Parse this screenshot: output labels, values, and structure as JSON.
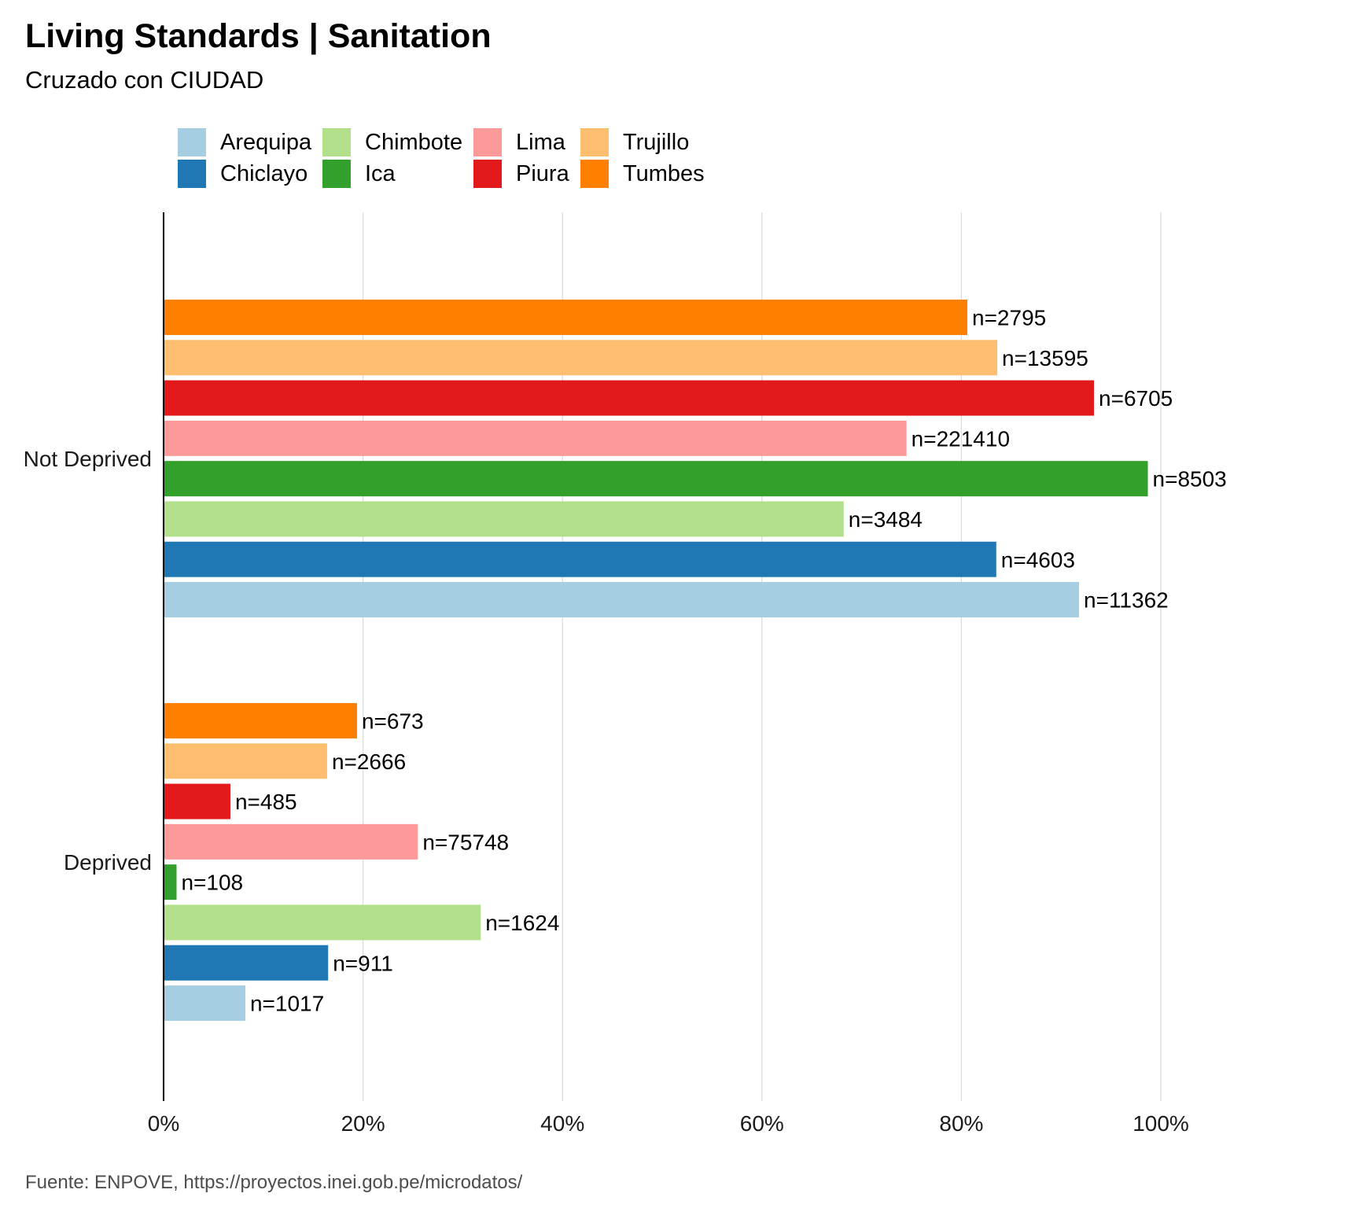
{
  "chart_data": {
    "type": "bar",
    "orientation": "horizontal",
    "title": "Living Standards | Sanitation",
    "subtitle": "Cruzado con CIUDAD",
    "caption": "Fuente:  ENPOVE, https://proyectos.inei.gob.pe/microdatos/",
    "categories": [
      "Deprived",
      "Not Deprived"
    ],
    "xlim": [
      0,
      1
    ],
    "x_ticks": [
      0,
      0.2,
      0.4,
      0.6,
      0.8,
      1.0
    ],
    "x_tick_labels": [
      "0%",
      "20%",
      "40%",
      "60%",
      "80%",
      "100%"
    ],
    "grid": "vertical major",
    "legend_position": "top",
    "series": [
      {
        "name": "Arequipa",
        "color": "#A6CEE3",
        "values": [
          0.082,
          0.918
        ],
        "labels": [
          "n=1017",
          "n=11362"
        ]
      },
      {
        "name": "Chiclayo",
        "color": "#1F78B4",
        "values": [
          0.165,
          0.835
        ],
        "labels": [
          "n=911",
          "n=4603"
        ]
      },
      {
        "name": "Chimbote",
        "color": "#B2DF8A",
        "values": [
          0.318,
          0.682
        ],
        "labels": [
          "n=1624",
          "n=3484"
        ]
      },
      {
        "name": "Ica",
        "color": "#33A02C",
        "values": [
          0.013,
          0.987
        ],
        "labels": [
          "n=108",
          "n=8503"
        ]
      },
      {
        "name": "Lima",
        "color": "#FB9A99",
        "values": [
          0.255,
          0.745
        ],
        "labels": [
          "n=75748",
          "n=221410"
        ]
      },
      {
        "name": "Piura",
        "color": "#E31A1C",
        "values": [
          0.067,
          0.933
        ],
        "labels": [
          "n=485",
          "n=6705"
        ]
      },
      {
        "name": "Trujillo",
        "color": "#FDBF6F",
        "values": [
          0.164,
          0.836
        ],
        "labels": [
          "n=2666",
          "n=13595"
        ]
      },
      {
        "name": "Tumbes",
        "color": "#FF7F00",
        "values": [
          0.194,
          0.806
        ],
        "labels": [
          "n=673",
          "n=2795"
        ]
      }
    ]
  }
}
